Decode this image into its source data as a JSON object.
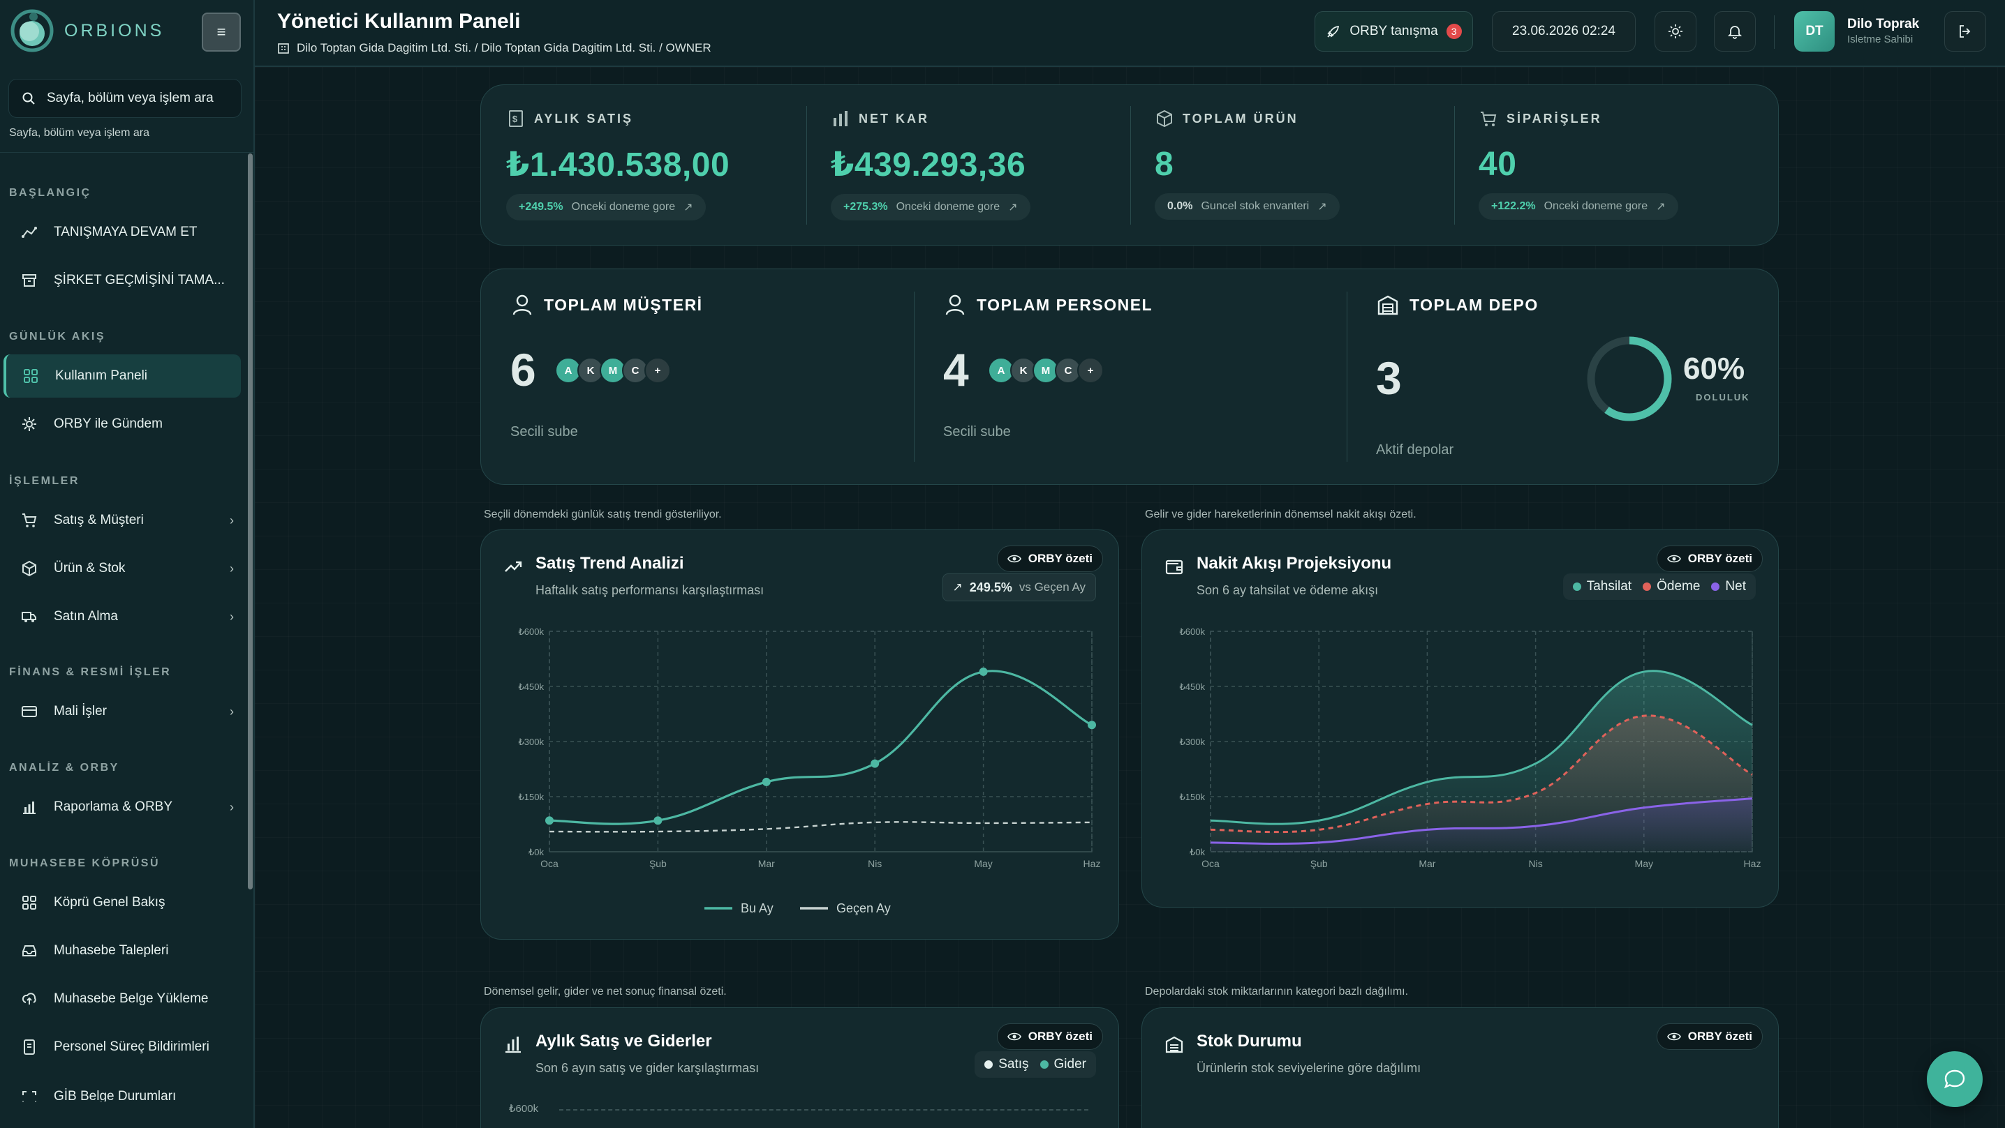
{
  "brand": {
    "name": "ORBIONS"
  },
  "sidebar": {
    "search_placeholder": "Sayfa, bölüm veya işlem ara",
    "search_hint": "Sayfa, bölüm veya işlem ara",
    "sections": [
      {
        "title": "BAŞLANGIÇ",
        "items": [
          {
            "label": "TANIŞMAYA DEVAM ET",
            "icon": "route-icon"
          },
          {
            "label": "ŞİRKET GEÇMİŞİNİ TAMA...",
            "icon": "archive-icon"
          }
        ]
      },
      {
        "title": "GÜNLÜK AKIŞ",
        "items": [
          {
            "label": "Kullanım Paneli",
            "icon": "dashboard-icon",
            "active": true
          },
          {
            "label": "ORBY ile Gündem",
            "icon": "sparkle-icon"
          }
        ]
      },
      {
        "title": "İŞLEMLER",
        "items": [
          {
            "label": "Satış & Müşteri",
            "icon": "cart-icon",
            "chevron": true
          },
          {
            "label": "Ürün & Stok",
            "icon": "box-icon",
            "chevron": true
          },
          {
            "label": "Satın Alma",
            "icon": "truck-icon",
            "chevron": true
          }
        ]
      },
      {
        "title": "FİNANS & RESMİ İŞLER",
        "items": [
          {
            "label": "Mali İşler",
            "icon": "card-icon",
            "chevron": true
          }
        ]
      },
      {
        "title": "ANALİZ & ORBY",
        "items": [
          {
            "label": "Raporlama & ORBY",
            "icon": "bar-chart-icon",
            "chevron": true
          }
        ]
      },
      {
        "title": "MUHASEBE KÖPRÜSÜ",
        "items": [
          {
            "label": "Köprü Genel Bakış",
            "icon": "grid-icon"
          },
          {
            "label": "Muhasebe Talepleri",
            "icon": "inbox-icon"
          },
          {
            "label": "Muhasebe Belge Yükleme",
            "icon": "upload-icon"
          },
          {
            "label": "Personel Süreç Bildirimleri",
            "icon": "file-icon"
          },
          {
            "label": "GİB Belge Durumları",
            "icon": "scan-icon"
          }
        ]
      }
    ]
  },
  "header": {
    "title": "Yönetici Kullanım Paneli",
    "breadcrumb": "Dilo Toptan Gida Dagitim Ltd. Sti. / Dilo Toptan Gida Dagitim Ltd. Sti. / OWNER",
    "tour_label": "ORBY tanışma",
    "tour_count": "3",
    "datetime": "23.06.2026 02:24",
    "user_initials": "DT",
    "user_name": "Dilo Toprak",
    "user_role": "Isletme Sahibi"
  },
  "kpis": [
    {
      "label": "AYLIK SATIŞ",
      "icon": "dollar-doc-icon",
      "value": "₺1.430.538,00",
      "delta": "+249.5%",
      "note": "Onceki doneme gore"
    },
    {
      "label": "NET KAR",
      "icon": "bars-icon",
      "value": "₺439.293,36",
      "delta": "+275.3%",
      "note": "Onceki doneme gore"
    },
    {
      "label": "TOPLAM ÜRÜN",
      "icon": "package-icon",
      "value": "8",
      "delta": "0.0%",
      "note": "Guncel stok envanteri"
    },
    {
      "label": "SİPARİŞLER",
      "icon": "cart-icon",
      "value": "40",
      "delta": "+122.2%",
      "note": "Onceki doneme gore"
    }
  ],
  "totals": {
    "customers": {
      "label": "TOPLAM MÜŞTERİ",
      "value": "6",
      "sub": "Secili sube",
      "avatars": [
        "A",
        "K",
        "M",
        "C",
        "+"
      ]
    },
    "staff": {
      "label": "TOPLAM PERSONEL",
      "value": "4",
      "sub": "Secili sube",
      "avatars": [
        "A",
        "K",
        "M",
        "C",
        "+"
      ]
    },
    "depot": {
      "label": "TOPLAM DEPO",
      "value": "3",
      "sub": "Aktif depolar",
      "fill_percent": 60,
      "fill_label": "60%",
      "fill_caption": "DOLULUK"
    }
  },
  "colors": {
    "accent": "#4fd0ad",
    "teal": "#4db8a3",
    "red": "#e0625a",
    "purple": "#8a63e8",
    "grey": "#c7d2d0"
  },
  "orby_badge": "ORBY özeti",
  "sales_trend": {
    "caption": "Seçili dönemdeki günlük satış trendi gösteriliyor.",
    "title": "Satış Trend Analizi",
    "subtitle": "Haftalık satış performansı karşılaştırması",
    "vs_value": "249.5%",
    "vs_label": "vs Geçen Ay",
    "legend": [
      "Bu Ay",
      "Geçen Ay"
    ]
  },
  "cash_flow": {
    "caption": "Gelir ve gider hareketlerinin dönemsel nakit akışı özeti.",
    "title": "Nakit Akışı Projeksiyonu",
    "subtitle": "Son 6 ay tahsilat ve ödeme akışı",
    "legend": [
      "Tahsilat",
      "Ödeme",
      "Net"
    ]
  },
  "monthly": {
    "caption": "Dönemsel gelir, gider ve net sonuç finansal özeti.",
    "title": "Aylık Satış ve Giderler",
    "subtitle": "Son 6 ayın satış ve gider karşılaştırması",
    "legend": [
      "Satış",
      "Gider"
    ],
    "y_top": "₺600k"
  },
  "stock": {
    "caption": "Depolardaki stok miktarlarının kategori bazlı dağılımı.",
    "title": "Stok Durumu",
    "subtitle": "Ürünlerin stok seviyelerine göre dağılımı"
  },
  "chart_data": [
    {
      "type": "line",
      "title": "Satış Trend Analizi",
      "x": [
        "Oca",
        "Şub",
        "Mar",
        "Nis",
        "May",
        "Haz"
      ],
      "y_ticks": [
        "₺0k",
        "₺150k",
        "₺300k",
        "₺450k",
        "₺600k"
      ],
      "ylim": [
        0,
        600000
      ],
      "series": [
        {
          "name": "Bu Ay",
          "values": [
            85000,
            85000,
            190000,
            240000,
            490000,
            345000
          ]
        },
        {
          "name": "Geçen Ay",
          "values": [
            55000,
            55000,
            62000,
            80000,
            78000,
            80000
          ]
        }
      ]
    },
    {
      "type": "area",
      "title": "Nakit Akışı Projeksiyonu",
      "x": [
        "Oca",
        "Şub",
        "Mar",
        "Nis",
        "May",
        "Haz"
      ],
      "y_ticks": [
        "₺0k",
        "₺150k",
        "₺300k",
        "₺450k",
        "₺600k"
      ],
      "ylim": [
        0,
        600000
      ],
      "series": [
        {
          "name": "Tahsilat",
          "values": [
            85000,
            85000,
            190000,
            240000,
            490000,
            345000
          ]
        },
        {
          "name": "Ödeme",
          "values": [
            60000,
            60000,
            130000,
            160000,
            370000,
            210000
          ]
        },
        {
          "name": "Net",
          "values": [
            25000,
            25000,
            60000,
            70000,
            120000,
            145000
          ]
        }
      ]
    }
  ]
}
